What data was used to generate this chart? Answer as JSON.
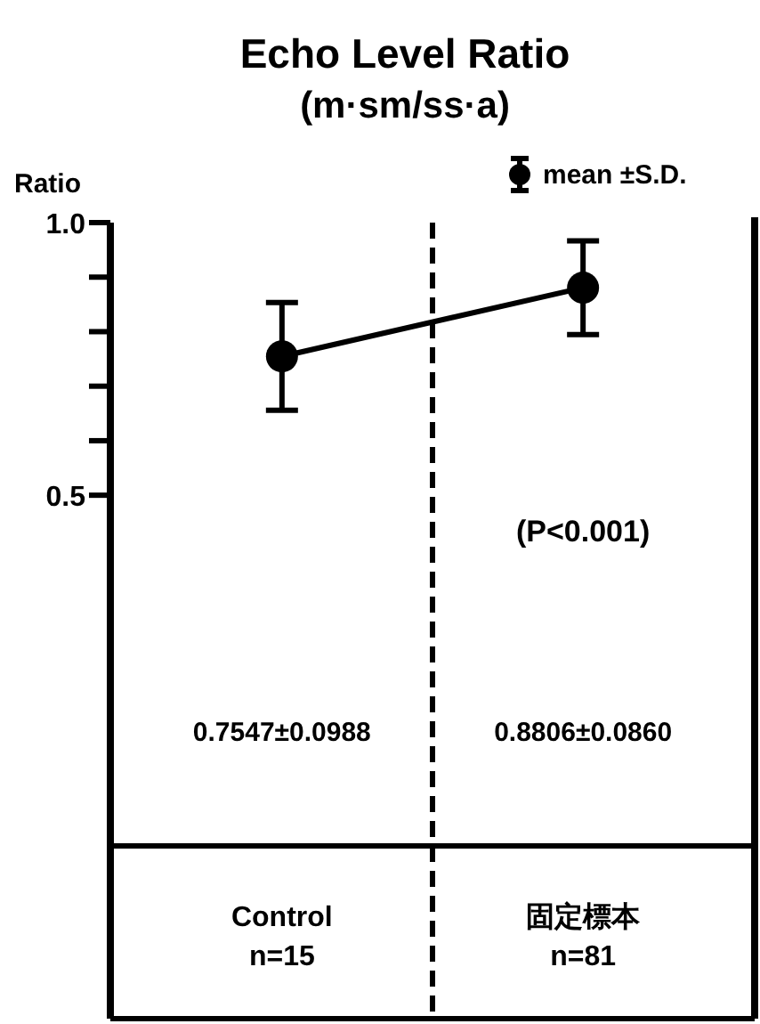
{
  "chart_data": {
    "type": "line",
    "title": "Echo Level Ratio",
    "subtitle": "(m·sm/ss·a)",
    "ylabel": "Ratio",
    "categories": [
      "Control",
      "固定標本"
    ],
    "series": [
      {
        "name": "mean ±S.D.",
        "color": "#000000",
        "values": [
          0.7547,
          0.8806
        ],
        "errors": [
          0.0988,
          0.086
        ]
      }
    ],
    "ylim": [
      -0.46,
      1.0
    ],
    "yticks": [
      {
        "value": 0.5,
        "label": "0.5"
      },
      {
        "value": 0.6,
        "label": null
      },
      {
        "value": 0.7,
        "label": null
      },
      {
        "value": 0.8,
        "label": null
      },
      {
        "value": 0.9,
        "label": null
      },
      {
        "value": 1.0,
        "label": "1.0"
      }
    ],
    "annotations": [
      "(P<0.001)",
      "n=15",
      "n=81",
      "0.7547±0.0988",
      "0.8806±0.0860"
    ],
    "marker": "circle",
    "line_style": "solid",
    "legend": "top right"
  }
}
